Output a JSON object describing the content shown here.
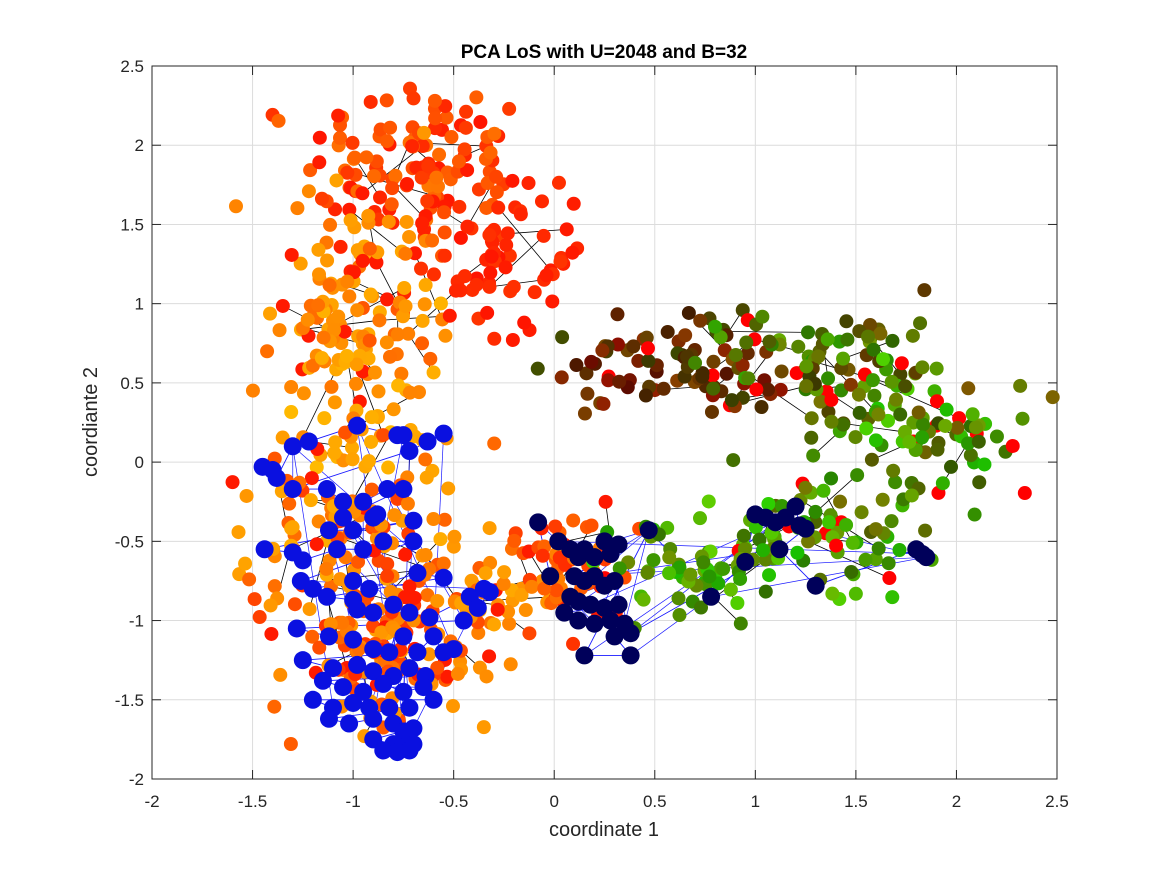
{
  "chart_data": {
    "type": "scatter",
    "title": "PCA LoS with U=2048 and B=32",
    "xlabel": "coordinate 1",
    "ylabel": "coordiante 2",
    "xlim": [
      -2,
      2.5
    ],
    "ylim": [
      -2,
      2.5
    ],
    "xticks": [
      -2,
      -1.5,
      -1,
      -0.5,
      0,
      0.5,
      1,
      1.5,
      2,
      2.5
    ],
    "xtick_labels": [
      "-2",
      "-1.5",
      "-1",
      "-0.5",
      "0",
      "0.5",
      "1",
      "1.5",
      "2",
      "2.5"
    ],
    "yticks": [
      -2,
      -1.5,
      -1,
      -0.5,
      0,
      0.5,
      1,
      1.5,
      2,
      2.5
    ],
    "ytick_labels": [
      "-2",
      "-1.5",
      "-1",
      "-0.5",
      "0",
      "0.5",
      "1",
      "1.5",
      "2",
      "2.5"
    ],
    "grid": true,
    "colors": {
      "red": "#ff2200",
      "orange": "#ff8800",
      "yellow": "#ffc400",
      "dark_red": "#600000",
      "green": "#22cc00",
      "blue": "#0a10e0",
      "navy": "#00005a",
      "black": "#000000"
    },
    "series": [
      {
        "color": "warm",
        "marker": "filled-circle",
        "clusters": [
          {
            "cx": -0.68,
            "cy": 1.85,
            "sx": 0.28,
            "sy": 0.3,
            "n": 130,
            "hue": [
              0.55,
              1.0
            ]
          },
          {
            "cx": -0.25,
            "cy": 1.25,
            "sx": 0.2,
            "sy": 0.22,
            "n": 60,
            "hue": [
              0.85,
              1.0
            ]
          },
          {
            "cx": -0.95,
            "cy": 1.1,
            "sx": 0.22,
            "sy": 0.35,
            "n": 90,
            "hue": [
              0.2,
              0.7
            ]
          },
          {
            "cx": -1.0,
            "cy": 0.55,
            "sx": 0.22,
            "sy": 0.25,
            "n": 60,
            "hue": [
              0.1,
              0.6
            ]
          },
          {
            "cx": -1.05,
            "cy": -0.35,
            "sx": 0.25,
            "sy": 0.35,
            "n": 120,
            "hue": [
              0.2,
              0.85
            ]
          },
          {
            "cx": -0.85,
            "cy": -1.2,
            "sx": 0.22,
            "sy": 0.3,
            "n": 110,
            "hue": [
              0.3,
              0.9
            ]
          },
          {
            "cx": -0.35,
            "cy": -0.85,
            "sx": 0.18,
            "sy": 0.22,
            "n": 60,
            "hue": [
              0.2,
              0.8
            ]
          },
          {
            "cx": 0.05,
            "cy": -0.65,
            "sx": 0.18,
            "sy": 0.18,
            "n": 55,
            "hue": [
              0.5,
              1.0
            ]
          }
        ]
      },
      {
        "color": "dark-red-to-green",
        "marker": "filled-circle",
        "clusters": [
          {
            "cx": 0.65,
            "cy": 0.62,
            "sx": 0.3,
            "sy": 0.17,
            "n": 80,
            "hue": [
              0.0,
              0.35
            ]
          },
          {
            "cx": 1.3,
            "cy": 0.62,
            "sx": 0.3,
            "sy": 0.2,
            "n": 80,
            "hue": [
              0.2,
              0.8
            ]
          },
          {
            "cx": 1.9,
            "cy": 0.2,
            "sx": 0.25,
            "sy": 0.2,
            "n": 70,
            "hue": [
              0.3,
              1.0
            ]
          },
          {
            "cx": 1.4,
            "cy": -0.4,
            "sx": 0.3,
            "sy": 0.2,
            "n": 70,
            "hue": [
              0.4,
              1.0
            ]
          },
          {
            "cx": 0.75,
            "cy": -0.65,
            "sx": 0.3,
            "sy": 0.15,
            "n": 70,
            "hue": [
              0.5,
              1.0
            ]
          }
        ]
      },
      {
        "color": "blue",
        "marker": "filled-circle-large",
        "points": [
          [
            -1.45,
            -0.03
          ],
          [
            -1.4,
            -0.05
          ],
          [
            -1.38,
            -0.1
          ],
          [
            -1.3,
            0.1
          ],
          [
            -1.22,
            0.13
          ],
          [
            -0.98,
            0.23
          ],
          [
            -0.78,
            0.17
          ],
          [
            -0.75,
            0.17
          ],
          [
            -0.63,
            0.13
          ],
          [
            -0.55,
            0.18
          ],
          [
            -0.72,
            0.07
          ],
          [
            -1.3,
            -0.17
          ],
          [
            -1.13,
            -0.17
          ],
          [
            -1.05,
            -0.25
          ],
          [
            -0.95,
            -0.25
          ],
          [
            -0.83,
            -0.17
          ],
          [
            -0.75,
            -0.17
          ],
          [
            -1.05,
            -0.35
          ],
          [
            -0.9,
            -0.35
          ],
          [
            -0.88,
            -0.33
          ],
          [
            -1.12,
            -0.43
          ],
          [
            -1.0,
            -0.43
          ],
          [
            -0.7,
            -0.37
          ],
          [
            -1.44,
            -0.55
          ],
          [
            -1.3,
            -0.57
          ],
          [
            -1.25,
            -0.62
          ],
          [
            -1.08,
            -0.55
          ],
          [
            -0.95,
            -0.55
          ],
          [
            -0.85,
            -0.5
          ],
          [
            -0.7,
            -0.5
          ],
          [
            -1.26,
            -0.75
          ],
          [
            -1.2,
            -0.8
          ],
          [
            -1.0,
            -0.75
          ],
          [
            -0.92,
            -0.8
          ],
          [
            -0.68,
            -0.7
          ],
          [
            -0.55,
            -0.73
          ],
          [
            -1.13,
            -0.85
          ],
          [
            -1.0,
            -0.87
          ],
          [
            -0.98,
            -0.93
          ],
          [
            -0.9,
            -0.95
          ],
          [
            -0.8,
            -0.9
          ],
          [
            -0.72,
            -0.95
          ],
          [
            -0.62,
            -0.98
          ],
          [
            -0.42,
            -0.85
          ],
          [
            -0.35,
            -0.8
          ],
          [
            -0.32,
            -0.82
          ],
          [
            -0.38,
            -0.92
          ],
          [
            -0.45,
            -1.0
          ],
          [
            -1.28,
            -1.05
          ],
          [
            -1.12,
            -1.1
          ],
          [
            -1.0,
            -1.12
          ],
          [
            -0.9,
            -1.18
          ],
          [
            -0.82,
            -1.2
          ],
          [
            -0.75,
            -1.1
          ],
          [
            -0.68,
            -1.2
          ],
          [
            -0.6,
            -1.1
          ],
          [
            -0.55,
            -1.2
          ],
          [
            -0.5,
            -1.18
          ],
          [
            -1.25,
            -1.25
          ],
          [
            -1.1,
            -1.3
          ],
          [
            -0.98,
            -1.28
          ],
          [
            -0.9,
            -1.32
          ],
          [
            -0.8,
            -1.35
          ],
          [
            -0.72,
            -1.3
          ],
          [
            -0.64,
            -1.35
          ],
          [
            -1.15,
            -1.38
          ],
          [
            -1.05,
            -1.42
          ],
          [
            -0.95,
            -1.45
          ],
          [
            -0.85,
            -1.4
          ],
          [
            -0.75,
            -1.45
          ],
          [
            -0.65,
            -1.42
          ],
          [
            -0.6,
            -1.5
          ],
          [
            -1.2,
            -1.5
          ],
          [
            -1.1,
            -1.55
          ],
          [
            -1.0,
            -1.52
          ],
          [
            -0.92,
            -1.55
          ],
          [
            -0.82,
            -1.55
          ],
          [
            -0.72,
            -1.55
          ],
          [
            -1.12,
            -1.62
          ],
          [
            -1.02,
            -1.65
          ],
          [
            -0.9,
            -1.62
          ],
          [
            -0.8,
            -1.65
          ],
          [
            -0.75,
            -1.7
          ],
          [
            -0.7,
            -1.68
          ],
          [
            -0.9,
            -1.75
          ],
          [
            -0.8,
            -1.78
          ],
          [
            -0.75,
            -1.8
          ],
          [
            -0.7,
            -1.78
          ],
          [
            -0.85,
            -1.82
          ],
          [
            -0.78,
            -1.83
          ],
          [
            -0.72,
            -1.82
          ]
        ]
      },
      {
        "color": "navy",
        "marker": "filled-circle-large",
        "points": [
          [
            -0.08,
            -0.38
          ],
          [
            -0.02,
            -0.72
          ],
          [
            0.02,
            -0.5
          ],
          [
            0.08,
            -0.55
          ],
          [
            0.12,
            -0.6
          ],
          [
            0.15,
            -0.55
          ],
          [
            0.2,
            -0.6
          ],
          [
            0.25,
            -0.5
          ],
          [
            0.28,
            -0.58
          ],
          [
            0.32,
            -0.52
          ],
          [
            0.1,
            -0.72
          ],
          [
            0.15,
            -0.75
          ],
          [
            0.2,
            -0.72
          ],
          [
            0.25,
            -0.78
          ],
          [
            0.3,
            -0.75
          ],
          [
            0.08,
            -0.85
          ],
          [
            0.12,
            -0.88
          ],
          [
            0.18,
            -0.9
          ],
          [
            0.25,
            -0.92
          ],
          [
            0.32,
            -0.9
          ],
          [
            0.05,
            -0.95
          ],
          [
            0.12,
            -1.0
          ],
          [
            0.2,
            -1.02
          ],
          [
            0.28,
            -1.0
          ],
          [
            0.35,
            -1.02
          ],
          [
            0.38,
            -1.08
          ],
          [
            0.3,
            -1.1
          ],
          [
            0.38,
            -1.22
          ],
          [
            0.15,
            -1.22
          ],
          [
            0.47,
            -0.43
          ],
          [
            0.78,
            -0.85
          ],
          [
            0.95,
            -0.63
          ],
          [
            1.0,
            -0.33
          ],
          [
            1.05,
            -0.35
          ],
          [
            1.1,
            -0.38
          ],
          [
            1.15,
            -0.35
          ],
          [
            1.2,
            -0.28
          ],
          [
            1.22,
            -0.4
          ],
          [
            1.25,
            -0.42
          ],
          [
            1.12,
            -0.55
          ],
          [
            1.3,
            -0.78
          ],
          [
            1.8,
            -0.55
          ],
          [
            1.83,
            -0.58
          ],
          [
            1.85,
            -0.6
          ]
        ]
      }
    ]
  }
}
